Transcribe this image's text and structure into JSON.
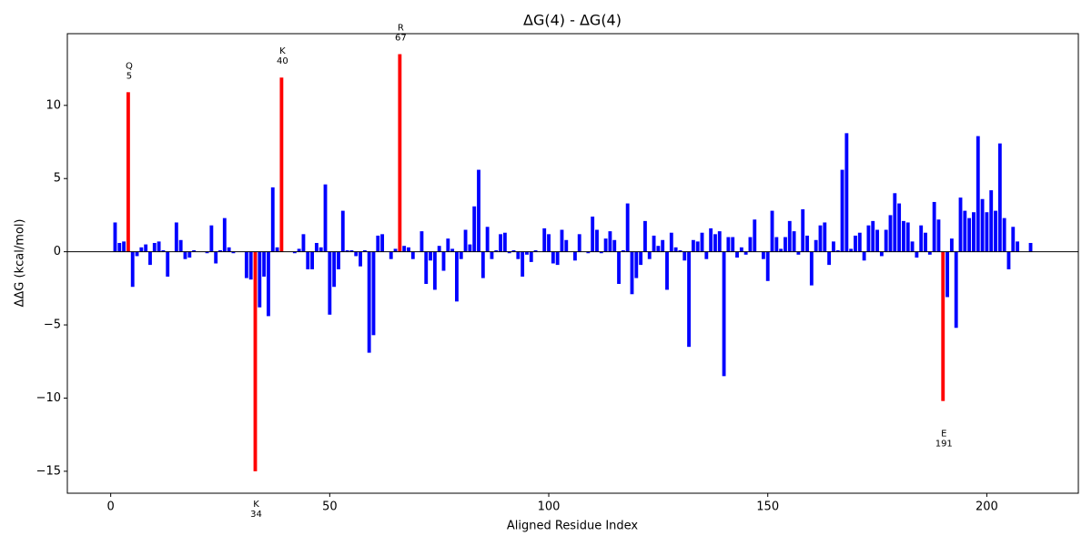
{
  "chart_data": {
    "type": "bar",
    "title": "ΔG(4) - ΔG(4)",
    "x_label": "Aligned Residue Index",
    "y_label": "ΔΔG (kcal/mol)",
    "color": "#0000ff",
    "highlight_color": "#ff0000",
    "xlim": [
      -9.9,
      220.9
    ],
    "ylim": [
      -16.5,
      14.9
    ],
    "xticks": [
      0,
      50,
      100,
      150,
      200
    ],
    "yticks": [
      {
        "value": -15,
        "label": "−15"
      },
      {
        "value": -10,
        "label": "−10"
      },
      {
        "value": -5,
        "label": "−5"
      },
      0,
      5,
      10
    ],
    "x": [
      1,
      2,
      3,
      4,
      5,
      6,
      7,
      8,
      9,
      10,
      11,
      12,
      13,
      14,
      15,
      16,
      17,
      18,
      19,
      20,
      21,
      22,
      23,
      24,
      25,
      26,
      27,
      28,
      29,
      30,
      31,
      32,
      33,
      34,
      35,
      36,
      37,
      38,
      39,
      40,
      41,
      42,
      43,
      44,
      45,
      46,
      47,
      48,
      49,
      50,
      51,
      52,
      53,
      54,
      55,
      56,
      57,
      58,
      59,
      60,
      61,
      62,
      63,
      64,
      65,
      66,
      67,
      68,
      69,
      70,
      71,
      72,
      73,
      74,
      75,
      76,
      77,
      78,
      79,
      80,
      81,
      82,
      83,
      84,
      85,
      86,
      87,
      88,
      89,
      90,
      91,
      92,
      93,
      94,
      95,
      96,
      97,
      98,
      99,
      100,
      101,
      102,
      103,
      104,
      105,
      106,
      107,
      108,
      109,
      110,
      111,
      112,
      113,
      114,
      115,
      116,
      117,
      118,
      119,
      120,
      121,
      122,
      123,
      124,
      125,
      126,
      127,
      128,
      129,
      130,
      131,
      132,
      133,
      134,
      135,
      136,
      137,
      138,
      139,
      140,
      141,
      142,
      143,
      144,
      145,
      146,
      147,
      148,
      149,
      150,
      151,
      152,
      153,
      154,
      155,
      156,
      157,
      158,
      159,
      160,
      161,
      162,
      163,
      164,
      165,
      166,
      167,
      168,
      169,
      170,
      171,
      172,
      173,
      174,
      175,
      176,
      177,
      178,
      179,
      180,
      181,
      182,
      183,
      184,
      185,
      186,
      187,
      188,
      189,
      190,
      191,
      192,
      193,
      194,
      195,
      196,
      197,
      198,
      199,
      200,
      201,
      202,
      203,
      204,
      205,
      206,
      207,
      208,
      209,
      210
    ],
    "values": [
      2.0,
      0.6,
      0.7,
      10.9,
      -2.4,
      -0.3,
      0.3,
      0.5,
      -0.9,
      0.6,
      0.7,
      0.1,
      -1.7,
      0,
      2.0,
      0.8,
      -0.5,
      -0.4,
      0.1,
      0,
      0,
      -0.1,
      1.8,
      -0.8,
      0.1,
      2.3,
      0.3,
      -0.1,
      0,
      0,
      -1.8,
      -1.9,
      -15.0,
      -3.8,
      -1.7,
      -4.4,
      4.4,
      0.3,
      11.9,
      0,
      0,
      -0.1,
      0.2,
      1.2,
      -1.2,
      -1.2,
      0.6,
      0.3,
      4.6,
      -4.3,
      -2.4,
      -1.2,
      2.8,
      0.1,
      0.1,
      -0.3,
      -1.0,
      0.1,
      -6.9,
      -5.7,
      1.1,
      1.2,
      0,
      -0.5,
      0.2,
      13.5,
      0.4,
      0.3,
      -0.5,
      0,
      1.4,
      -2.2,
      -0.6,
      -2.6,
      0.4,
      -1.3,
      0.9,
      0.2,
      -3.4,
      -0.5,
      1.5,
      0.5,
      3.1,
      5.6,
      -1.8,
      1.7,
      -0.5,
      0.1,
      1.2,
      1.3,
      -0.1,
      0.1,
      -0.5,
      -1.7,
      -0.2,
      -0.7,
      0.1,
      0,
      1.6,
      1.2,
      -0.8,
      -0.9,
      1.5,
      0.8,
      0,
      -0.6,
      1.2,
      0,
      -0.1,
      2.4,
      1.5,
      -0.1,
      0.9,
      1.4,
      0.8,
      -2.2,
      0.1,
      3.3,
      -2.9,
      -1.8,
      -0.9,
      2.1,
      -0.5,
      1.1,
      0.4,
      0.8,
      -2.6,
      1.3,
      0.3,
      0.1,
      -0.6,
      -6.5,
      0.8,
      0.7,
      1.3,
      -0.5,
      1.6,
      1.2,
      1.4,
      -8.5,
      1.0,
      1.0,
      -0.4,
      0.3,
      -0.2,
      1.0,
      2.2,
      0,
      -0.5,
      -2.0,
      2.8,
      1.0,
      0.2,
      1.0,
      2.1,
      1.4,
      -0.2,
      2.9,
      1.1,
      -2.3,
      0.8,
      1.8,
      2.0,
      -0.9,
      0.7,
      0.1,
      5.6,
      8.1,
      0.2,
      1.1,
      1.3,
      -0.6,
      1.8,
      2.1,
      1.5,
      -0.3,
      1.5,
      2.5,
      4.0,
      3.3,
      2.1,
      2.0,
      0.7,
      -0.4,
      1.8,
      1.3,
      -0.2,
      3.4,
      2.2,
      -10.2,
      -3.1,
      0.9,
      -5.2,
      3.7,
      2.8,
      2.3,
      2.7,
      7.9,
      3.6,
      2.7,
      4.2,
      2.8,
      7.4,
      2.3,
      -1.2,
      1.7,
      0.7,
      0,
      0,
      0.6
    ],
    "annotations": [
      {
        "x": 4,
        "lines": [
          "Q",
          "5"
        ]
      },
      {
        "x": 33,
        "lines": [
          "K",
          "34"
        ]
      },
      {
        "x": 39,
        "lines": [
          "K",
          "40"
        ]
      },
      {
        "x": 66,
        "lines": [
          "R",
          "67"
        ]
      },
      {
        "x": 190,
        "lines": [
          "E",
          "191"
        ]
      }
    ]
  }
}
